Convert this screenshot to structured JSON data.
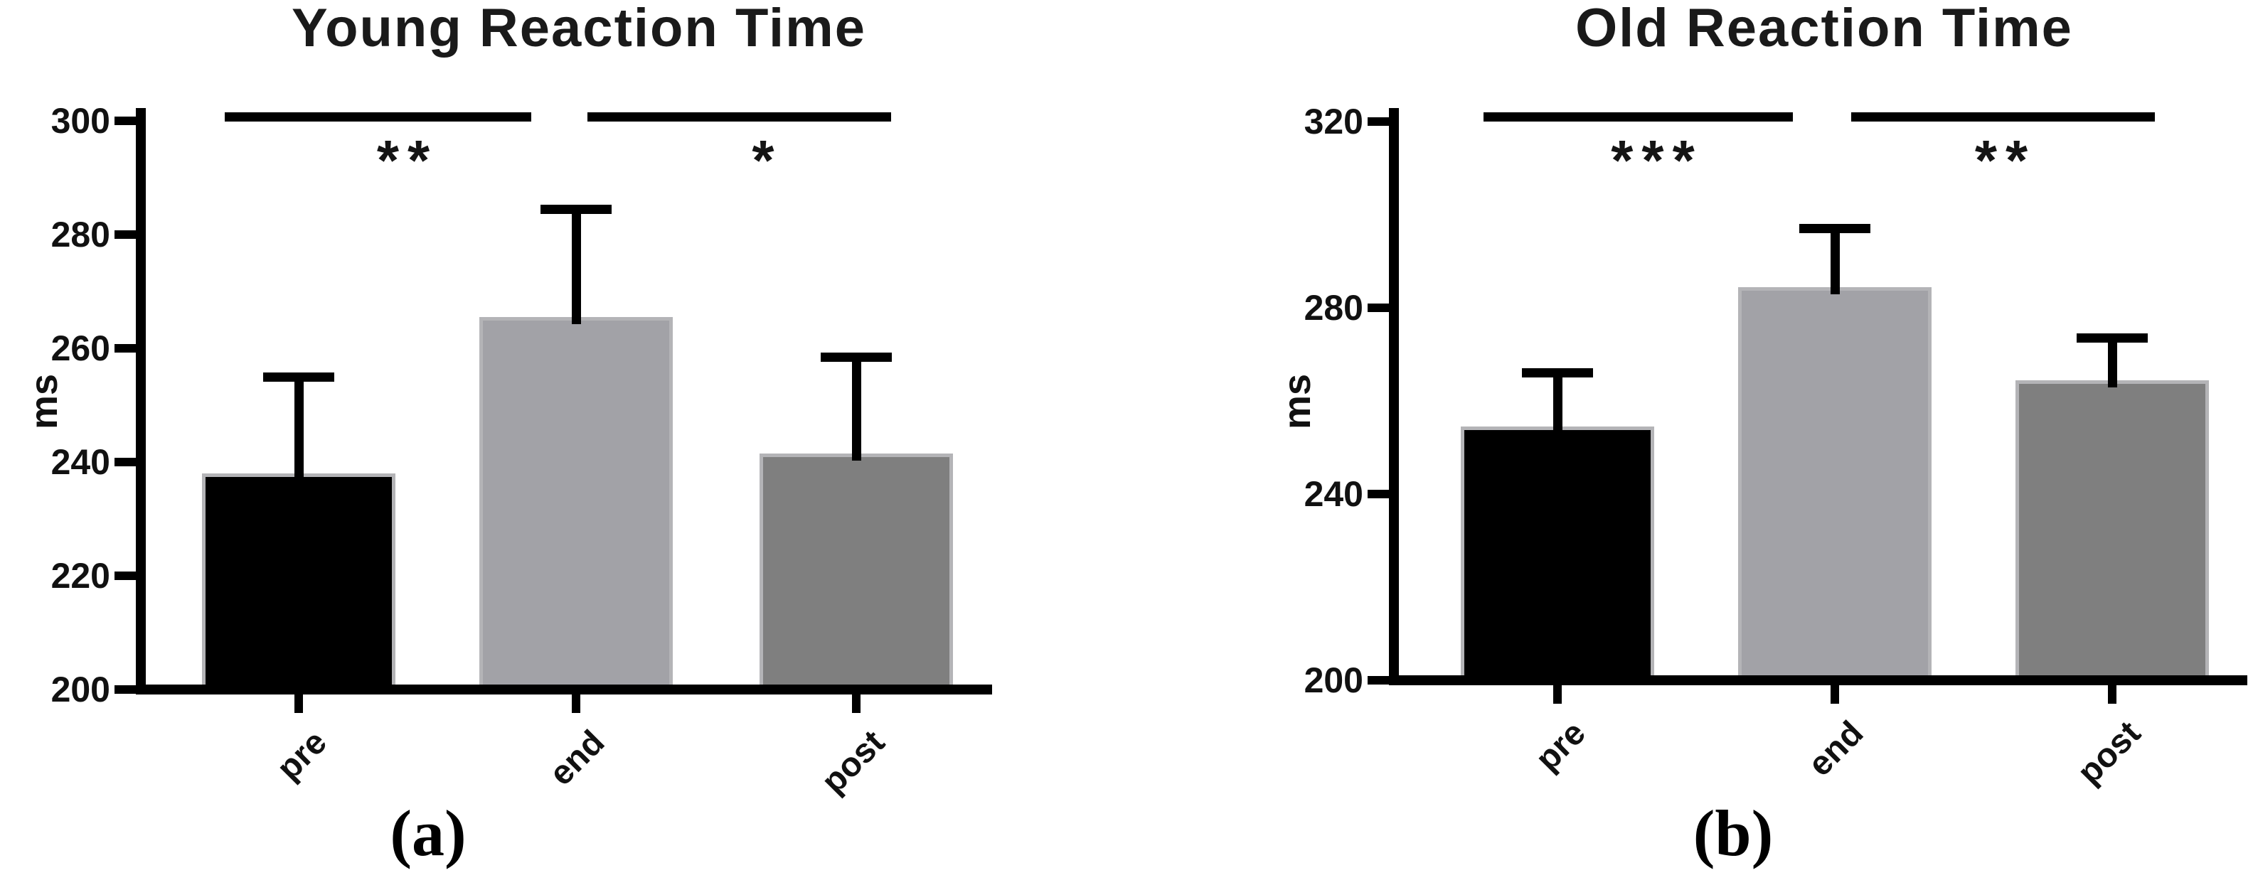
{
  "figure": {
    "background": "#ffffff",
    "panel_a_letter": "(a)",
    "panel_b_letter": "(b)"
  },
  "chart_data": [
    {
      "panel": "a",
      "type": "bar",
      "title": "Young Reaction Time",
      "ylabel": "ms",
      "categories": [
        "pre",
        "end",
        "post"
      ],
      "values": [
        238,
        265.5,
        241.5
      ],
      "error_tops": [
        255,
        284.5,
        258.5
      ],
      "bar_colors": [
        "#000000",
        "#a2a2a7",
        "#7f7f7f"
      ],
      "ylim": [
        200,
        300
      ],
      "yticks": [
        200,
        220,
        240,
        260,
        280,
        300
      ],
      "grid": false,
      "legend": "none",
      "significance": [
        {
          "between": [
            "pre",
            "end"
          ],
          "label": "**"
        },
        {
          "between": [
            "end",
            "post"
          ],
          "label": "*"
        }
      ],
      "panel_label": "(a)"
    },
    {
      "panel": "b",
      "type": "bar",
      "title": "Old Reaction Time",
      "ylabel": "ms",
      "categories": [
        "pre",
        "end",
        "post"
      ],
      "values": [
        254.5,
        284.5,
        264.5
      ],
      "error_tops": [
        266,
        297,
        273.5
      ],
      "bar_colors": [
        "#000000",
        "#a2a2a7",
        "#7f7f7f"
      ],
      "ylim": [
        200,
        320
      ],
      "yticks": [
        200,
        240,
        280,
        320
      ],
      "grid": false,
      "legend": "none",
      "significance": [
        {
          "between": [
            "pre",
            "end"
          ],
          "label": "***"
        },
        {
          "between": [
            "end",
            "post"
          ],
          "label": "**"
        }
      ],
      "panel_label": "(b)"
    }
  ]
}
